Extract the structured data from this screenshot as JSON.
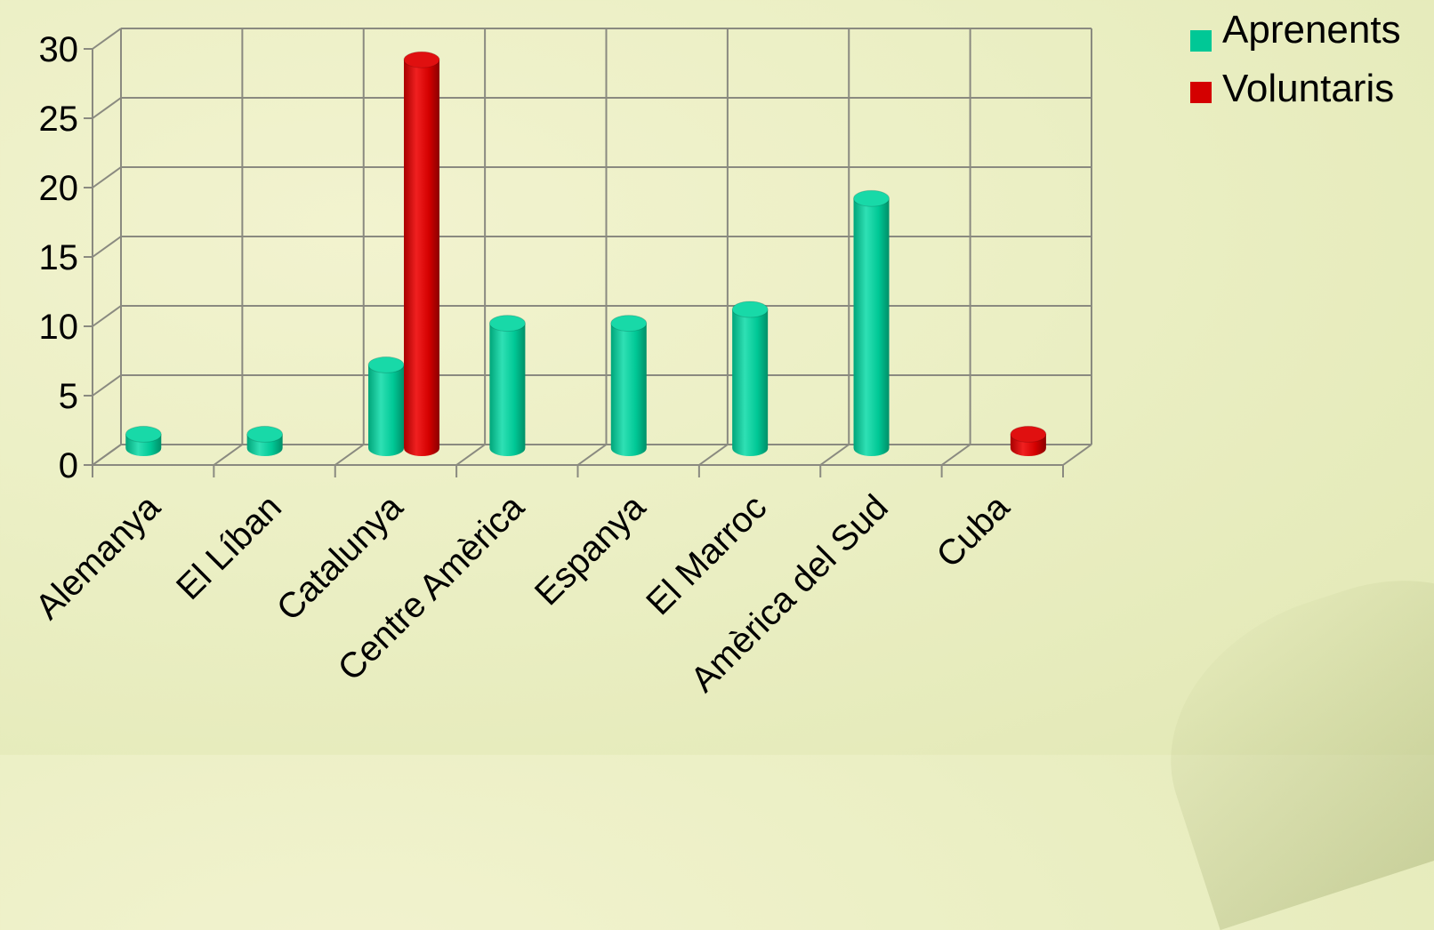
{
  "chart_data": {
    "type": "bar",
    "style": "3d-cylinder",
    "categories": [
      "Alemanya",
      "El Líban",
      "Catalunya",
      "Centre Amèrica",
      "Espanya",
      "El Marroc",
      "Amèrica del Sud",
      "Cuba"
    ],
    "series": [
      {
        "name": "Aprenents",
        "color": "#00c896",
        "values": [
          1,
          1,
          6,
          9,
          9,
          10,
          18,
          null
        ]
      },
      {
        "name": "Voluntaris",
        "color": "#d40000",
        "values": [
          null,
          null,
          28,
          null,
          null,
          null,
          null,
          1
        ]
      }
    ],
    "y_ticks": [
      "0",
      "5",
      "10",
      "15",
      "20",
      "25",
      "30"
    ],
    "ylim": [
      0,
      30
    ],
    "grid": true,
    "legend_position": "top-right"
  }
}
